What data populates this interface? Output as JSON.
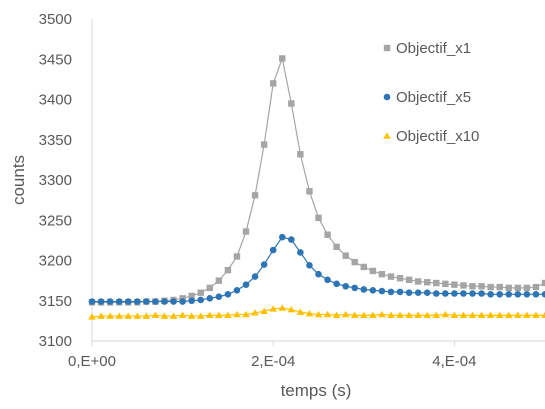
{
  "chart_data": {
    "type": "line",
    "title": "",
    "xlabel": "temps (s)",
    "ylabel": "counts",
    "xlim": [
      0,
      0.0005
    ],
    "ylim": [
      3100,
      3500
    ],
    "grid": false,
    "legend_position": "top-right",
    "x_ticks": [
      {
        "value": 0,
        "label": "0,E+00"
      },
      {
        "value": 0.0002,
        "label": "2,E-04"
      },
      {
        "value": 0.0004,
        "label": "4,E-04"
      }
    ],
    "y_ticks": [
      3100,
      3150,
      3200,
      3250,
      3300,
      3350,
      3400,
      3450,
      3500
    ],
    "x": [
      0,
      1e-05,
      2e-05,
      3e-05,
      4e-05,
      5e-05,
      6e-05,
      7e-05,
      8e-05,
      9e-05,
      0.0001,
      0.00011,
      0.00012,
      0.00013,
      0.00014,
      0.00015,
      0.00016,
      0.00017,
      0.00018,
      0.00019,
      0.0002,
      0.00021,
      0.00022,
      0.00023,
      0.00024,
      0.00025,
      0.00026,
      0.00027,
      0.00028,
      0.00029,
      0.0003,
      0.00031,
      0.00032,
      0.00033,
      0.00034,
      0.00035,
      0.00036,
      0.00037,
      0.00038,
      0.00039,
      0.0004,
      0.00041,
      0.00042,
      0.00043,
      0.00044,
      0.00045,
      0.00046,
      0.00047,
      0.00048,
      0.00049,
      0.0005
    ],
    "series": [
      {
        "name": "Objectif_x1",
        "color": "#a5a5a5",
        "marker": "square",
        "values": [
          3148,
          3148,
          3148,
          3148,
          3148,
          3148,
          3149,
          3149,
          3150,
          3151,
          3153,
          3156,
          3160,
          3166,
          3175,
          3188,
          3205,
          3236,
          3281,
          3344,
          3420,
          3451,
          3395,
          3332,
          3286,
          3253,
          3232,
          3217,
          3206,
          3198,
          3192,
          3187,
          3183,
          3180,
          3178,
          3176,
          3174,
          3173,
          3172,
          3171,
          3170,
          3169,
          3168,
          3168,
          3167,
          3167,
          3166,
          3166,
          3166,
          3167,
          3172
        ]
      },
      {
        "name": "Objectif_x5",
        "color": "#2e75b6",
        "marker": "circle",
        "values": [
          3149,
          3149,
          3149,
          3149,
          3149,
          3149,
          3149,
          3149,
          3149,
          3149,
          3149,
          3150,
          3151,
          3153,
          3155,
          3158,
          3163,
          3170,
          3180,
          3195,
          3213,
          3229,
          3226,
          3210,
          3194,
          3183,
          3176,
          3171,
          3168,
          3166,
          3164,
          3163,
          3162,
          3161,
          3161,
          3160,
          3160,
          3160,
          3159,
          3159,
          3159,
          3159,
          3159,
          3159,
          3158,
          3158,
          3158,
          3158,
          3158,
          3158,
          3158
        ]
      },
      {
        "name": "Objectif_x10",
        "color": "#ffc000",
        "marker": "triangle",
        "values": [
          3130,
          3131,
          3131,
          3131,
          3131,
          3131,
          3131,
          3132,
          3131,
          3131,
          3132,
          3131,
          3131,
          3132,
          3132,
          3132,
          3133,
          3133,
          3135,
          3137,
          3140,
          3141,
          3139,
          3136,
          3134,
          3133,
          3133,
          3132,
          3133,
          3132,
          3132,
          3132,
          3133,
          3132,
          3132,
          3132,
          3132,
          3132,
          3132,
          3133,
          3132,
          3132,
          3132,
          3132,
          3132,
          3132,
          3132,
          3132,
          3132,
          3132,
          3132
        ]
      }
    ]
  }
}
